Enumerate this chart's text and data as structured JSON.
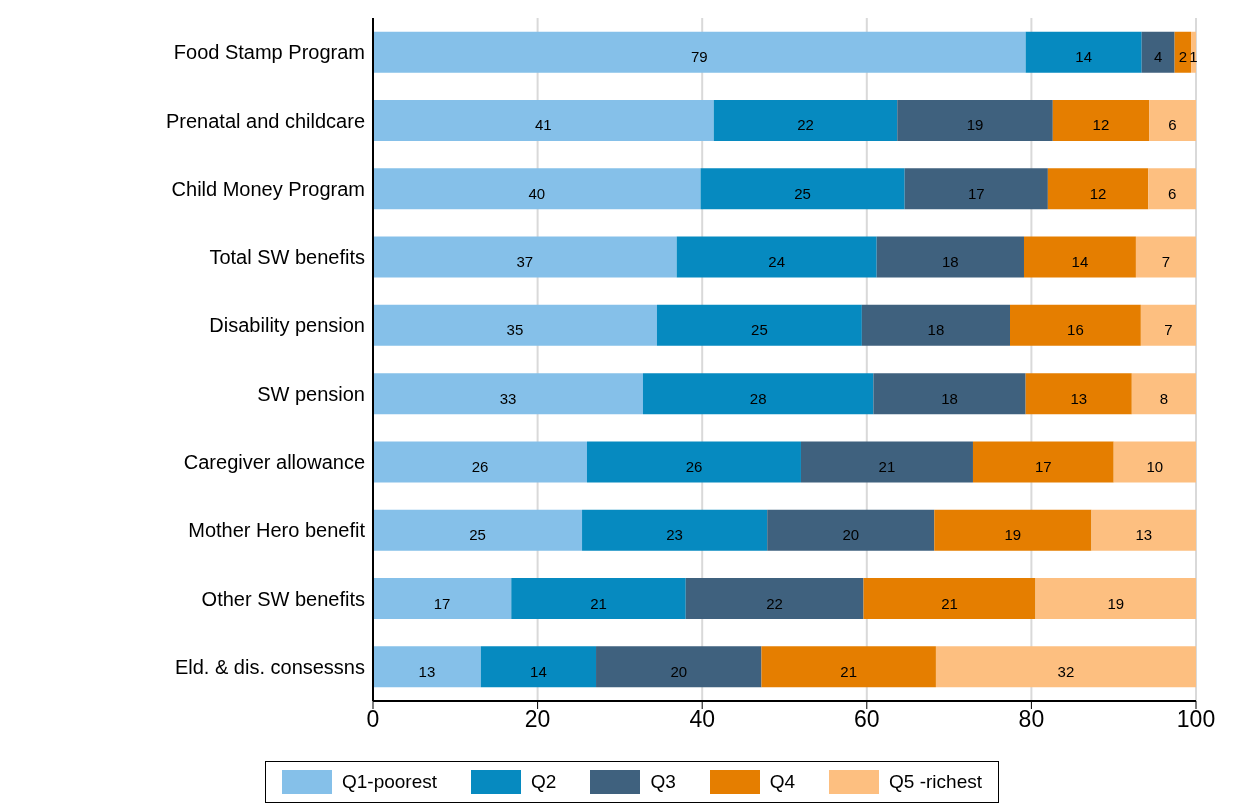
{
  "chart_data": {
    "type": "bar",
    "orientation": "horizontal",
    "stacked": true,
    "categories": [
      "Food Stamp Program",
      "Prenatal and childcare",
      "Child Money Program",
      "Total SW benefits",
      "Disability pension",
      "SW pension",
      "Caregiver allowance",
      "Mother Hero benefit",
      "Other SW benefits",
      "Eld. & dis. consessns"
    ],
    "series": [
      {
        "name": "Q1-poorest",
        "color": "#85c0e9",
        "values": [
          79.3,
          41.4,
          39.8,
          36.9,
          34.5,
          32.8,
          26.0,
          25.4,
          16.8,
          13.1
        ],
        "value_labels": [
          "79",
          "41",
          "40",
          "37",
          "35",
          "33",
          "26",
          "25",
          "17",
          "13"
        ]
      },
      {
        "name": "Q2",
        "color": "#068ac0",
        "values": [
          14.1,
          22.3,
          24.8,
          24.3,
          24.9,
          28.0,
          26.0,
          22.5,
          21.2,
          14.0
        ],
        "value_labels": [
          "14",
          "22",
          "25",
          "24",
          "25",
          "28",
          "26",
          "23",
          "21",
          "14"
        ]
      },
      {
        "name": "Q3",
        "color": "#3f617e",
        "values": [
          4.0,
          18.9,
          17.4,
          17.9,
          18.0,
          18.5,
          20.9,
          20.3,
          21.6,
          20.1
        ],
        "value_labels": [
          "4",
          "19",
          "17",
          "18",
          "18",
          "18",
          "21",
          "20",
          "22",
          "20"
        ]
      },
      {
        "name": "Q4",
        "color": "#e57e00",
        "values": [
          2.0,
          11.7,
          12.2,
          13.6,
          15.9,
          12.9,
          17.1,
          19.1,
          20.9,
          21.2
        ],
        "value_labels": [
          "2",
          "12",
          "12",
          "14",
          "16",
          "13",
          "17",
          "19",
          "21",
          "21"
        ]
      },
      {
        "name": "Q5 -richest",
        "color": "#fdbf80",
        "values": [
          0.6,
          5.7,
          5.8,
          7.3,
          6.7,
          7.8,
          10.0,
          12.7,
          19.5,
          31.6
        ],
        "value_labels": [
          "1",
          "6",
          "6",
          "7",
          "7",
          "8",
          "10",
          "13",
          "19",
          "32"
        ]
      }
    ],
    "xlim": [
      0,
      100
    ],
    "xticks": [
      0,
      20,
      40,
      60,
      80,
      100
    ],
    "grid": "x",
    "legend": "bottom"
  }
}
